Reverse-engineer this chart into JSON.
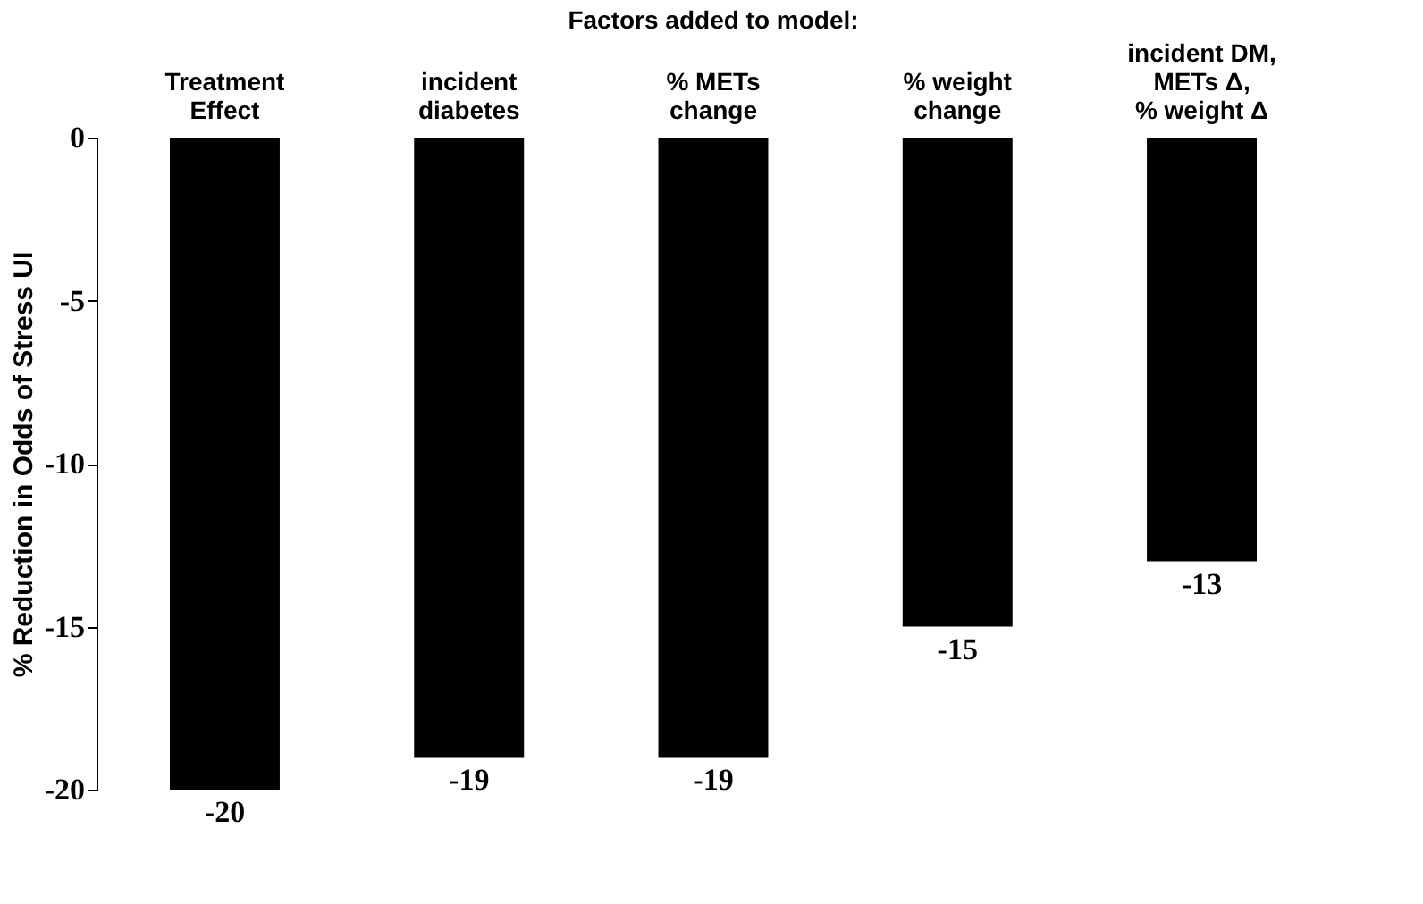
{
  "chart_data": {
    "type": "bar",
    "title": "Factors added to model:",
    "ylabel": "% Reduction in Odds of Stress UI",
    "categories": [
      "Treatment\nEffect",
      "incident\ndiabetes",
      "% METs\nchange",
      "% weight\nchange",
      "incident DM,\nMETs Δ,\n% weight Δ"
    ],
    "values": [
      -20,
      -19,
      -19,
      -15,
      -13
    ],
    "color": "#000000",
    "ylim": [
      -20,
      0
    ],
    "yticks": [
      -20,
      -15,
      -10,
      -5,
      0
    ],
    "grid": false,
    "data_labels": true
  }
}
